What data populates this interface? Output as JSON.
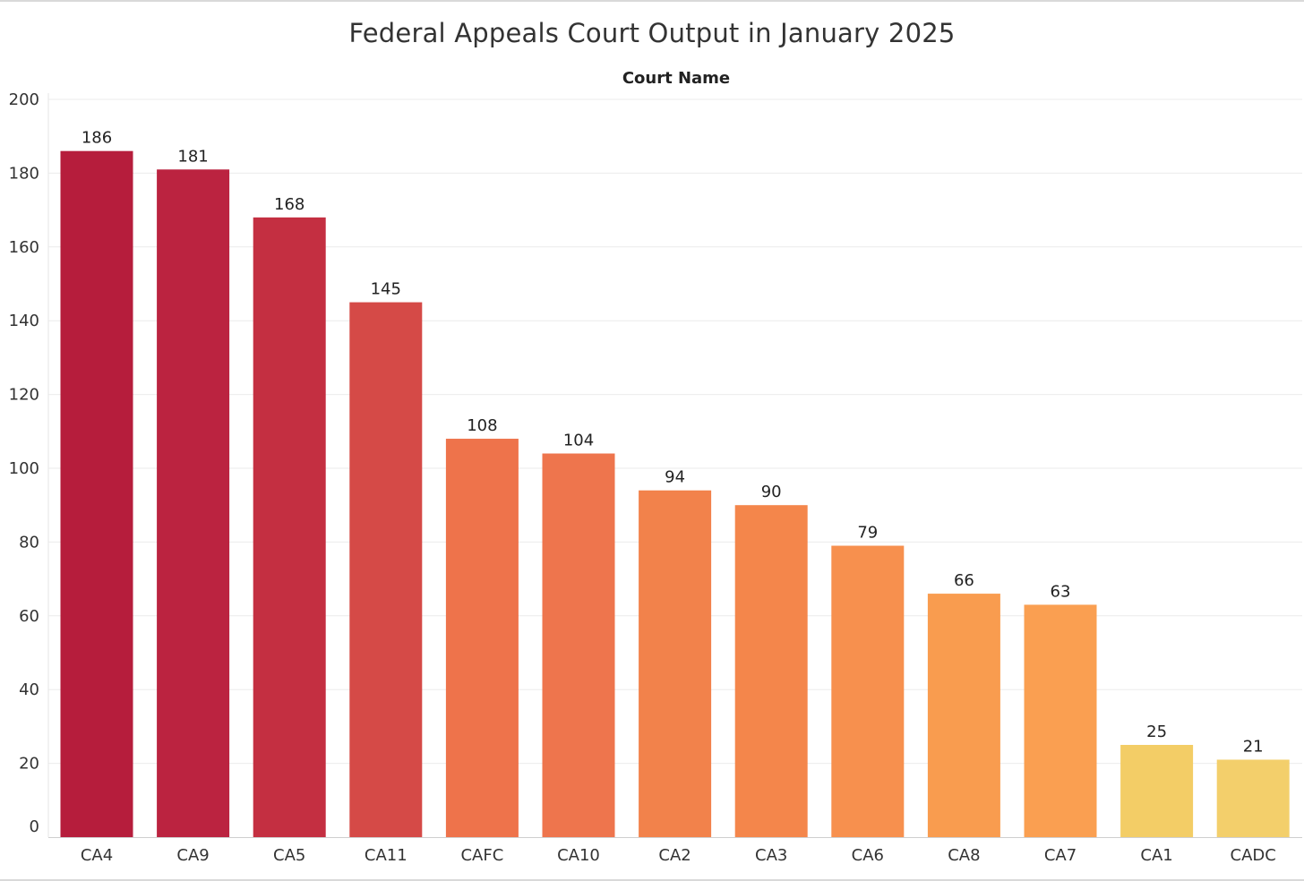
{
  "chart_data": {
    "type": "bar",
    "title": "Federal Appeals Court Output in January 2025",
    "xlabel": "Court Name",
    "ylabel": "",
    "ylim": [
      0,
      200
    ],
    "yticks": [
      0,
      20,
      40,
      60,
      80,
      100,
      120,
      140,
      160,
      180,
      200
    ],
    "grid": true,
    "categories": [
      "CA4",
      "CA9",
      "CA5",
      "CA11",
      "CAFC",
      "CA10",
      "CA2",
      "CA3",
      "CA6",
      "CA8",
      "CA7",
      "CA1",
      "CADC"
    ],
    "values": [
      186,
      181,
      168,
      145,
      108,
      104,
      94,
      90,
      79,
      66,
      63,
      25,
      21
    ],
    "colors": [
      "#b61d3c",
      "#bb2340",
      "#c42f41",
      "#d54a47",
      "#ee734b",
      "#ee754d",
      "#f2824b",
      "#f4864b",
      "#f7904e",
      "#f99c4f",
      "#fa9f51",
      "#f3cd66",
      "#f3cf6b"
    ]
  }
}
